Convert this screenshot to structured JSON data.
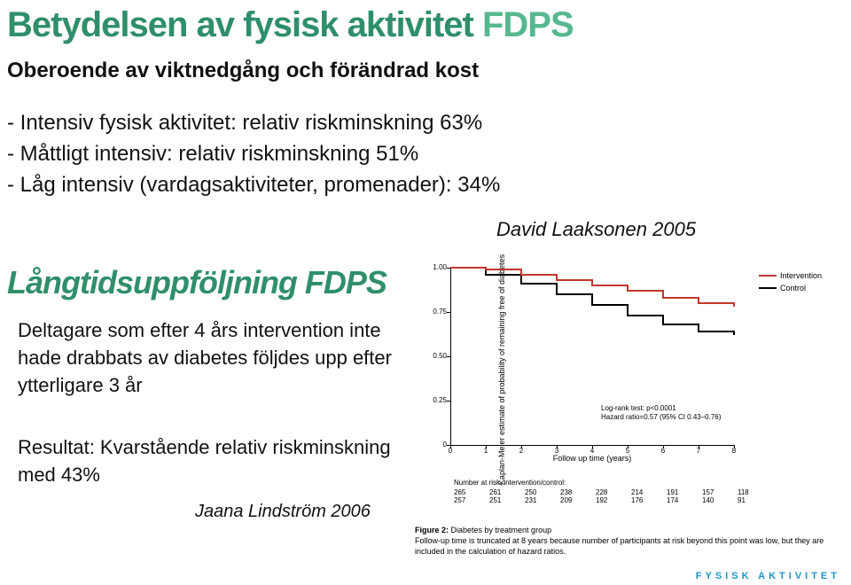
{
  "title_main": "Betydelsen av fysisk aktivitet ",
  "title_accent": "FDPS",
  "title_color_main": "#2f8f6a",
  "title_color_accent": "#57b890",
  "subtitle": "Oberoende av viktnedgång och förändrad kost",
  "bullets": [
    "- Intensiv fysisk aktivitet: relativ riskminskning 63%",
    "- Måttligt intensiv: relativ riskminskning 51%",
    "- Låg intensiv (vardagsaktiviteter, promenader): 34%"
  ],
  "attribution1": "David Laaksonen 2005",
  "heading2": "Långtidsuppföljning FDPS",
  "para1": "Deltagare som efter 4 års intervention inte hade drabbats av diabetes följdes upp efter ytterligare 3 år",
  "para2": "Resultat: Kvarstående relativ riskminskning med 43%",
  "attribution2": "Jaana Lindström 2006",
  "chart": {
    "type": "line",
    "y_label": "Kaplan-Meier estimate of probability of remaining free of diabetes",
    "x_label": "Follow up time (years)",
    "x_min": 0,
    "x_max": 8,
    "y_min": 0,
    "y_max": 1.0,
    "y_ticks": [
      0,
      0.25,
      0.5,
      0.75,
      1.0
    ],
    "y_tick_labels": [
      "0",
      "0.25",
      "0.50",
      "0.75",
      "1.00"
    ],
    "x_ticks": [
      0,
      1,
      2,
      3,
      4,
      5,
      6,
      7,
      8
    ],
    "intervention_color": "#c0392b",
    "control_color": "#000000",
    "line_width": 2,
    "intervention_points": [
      [
        0,
        1.0
      ],
      [
        1,
        0.99
      ],
      [
        2,
        0.96
      ],
      [
        3,
        0.93
      ],
      [
        4,
        0.9
      ],
      [
        5,
        0.87
      ],
      [
        6,
        0.83
      ],
      [
        7,
        0.8
      ],
      [
        8,
        0.78
      ]
    ],
    "control_points": [
      [
        0,
        1.0
      ],
      [
        1,
        0.96
      ],
      [
        2,
        0.91
      ],
      [
        3,
        0.85
      ],
      [
        4,
        0.79
      ],
      [
        5,
        0.73
      ],
      [
        6,
        0.68
      ],
      [
        7,
        0.64
      ],
      [
        8,
        0.62
      ]
    ],
    "legend": [
      {
        "label": "Intervention",
        "color": "#c0392b"
      },
      {
        "label": "Control",
        "color": "#000000"
      }
    ],
    "logrank_l1": "Log-rank test: p<0.0001",
    "logrank_l2": "Hazard ratio=0.57 (95% CI 0.43–0.76)",
    "risk_header": "Number at risk, intervention/control:",
    "risk_rows": [
      [
        "265",
        "261",
        "250",
        "238",
        "228",
        "214",
        "191",
        "157",
        "118"
      ],
      [
        "257",
        "251",
        "231",
        "209",
        "192",
        "176",
        "174",
        "140",
        "91"
      ]
    ]
  },
  "caption_bold": "Figure 2:",
  "caption_rest": " Diabetes by treatment group",
  "caption_line2": "Follow-up time is truncated at 8 years because number of participants at risk beyond this point was low, but they are included in the calculation of hazard ratios.",
  "footer_brand": "FYSISK AKTIVITET"
}
